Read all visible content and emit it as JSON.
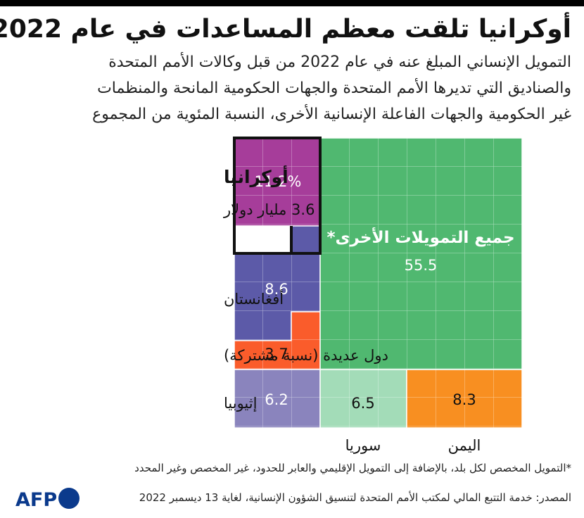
{
  "title": "أوكرانيا تلقت معظم المساعدات في عام 2022",
  "subtitle_lines": [
    "التمويل الإنساني المبلغ عنه في عام 2022 من قبل وكالات الأمم المتحدة",
    "والصناديق التي تديرها الأمم المتحدة والجهات الحكومية المانحة والمنظمات",
    "غير الحكومية والجهات الفاعلة الإنسانية الأخرى، النسبة المئوية من المجموع"
  ],
  "chart_data": {
    "type": "treemap",
    "unit": "%",
    "cells": [
      {
        "name": "أوكرانيا",
        "value": 11.2,
        "value_label": "11.2%",
        "extra": "3.6 مليار دولار",
        "color": "#a63d9a",
        "highlighted": true
      },
      {
        "name": "أفغانستان",
        "value": 8.6,
        "value_label": "8.6",
        "color": "#5c5aa8"
      },
      {
        "name": "دول عديدة (نسبة مشتركة)",
        "value": 3.7,
        "value_label": "3.7",
        "color": "#fa5c2b"
      },
      {
        "name": "إثيوبيا",
        "value": 6.2,
        "value_label": "6.2",
        "color": "#8a84bd"
      },
      {
        "name": "سوريا",
        "value": 6.5,
        "value_label": "6.5",
        "color": "#a3dcb8"
      },
      {
        "name": "اليمن",
        "value": 8.3,
        "value_label": "8.3",
        "color": "#f88f21"
      },
      {
        "name": "جميع التمويلات الأخرى*",
        "value": 55.5,
        "value_label": "55.5",
        "color": "#50b870"
      }
    ]
  },
  "footnote": "*التمويل المخصص لكل بلد، بالإضافة إلى التمويل الإقليمي والعابر للحدود، غير المخصص وغير المحدد",
  "source": "المصدر: خدمة التتبع المالي لمكتب الأمم المتحدة لتنسيق الشؤون الإنسانية، لغاية 13 ديسمبر 2022",
  "logo_text": "AFP"
}
